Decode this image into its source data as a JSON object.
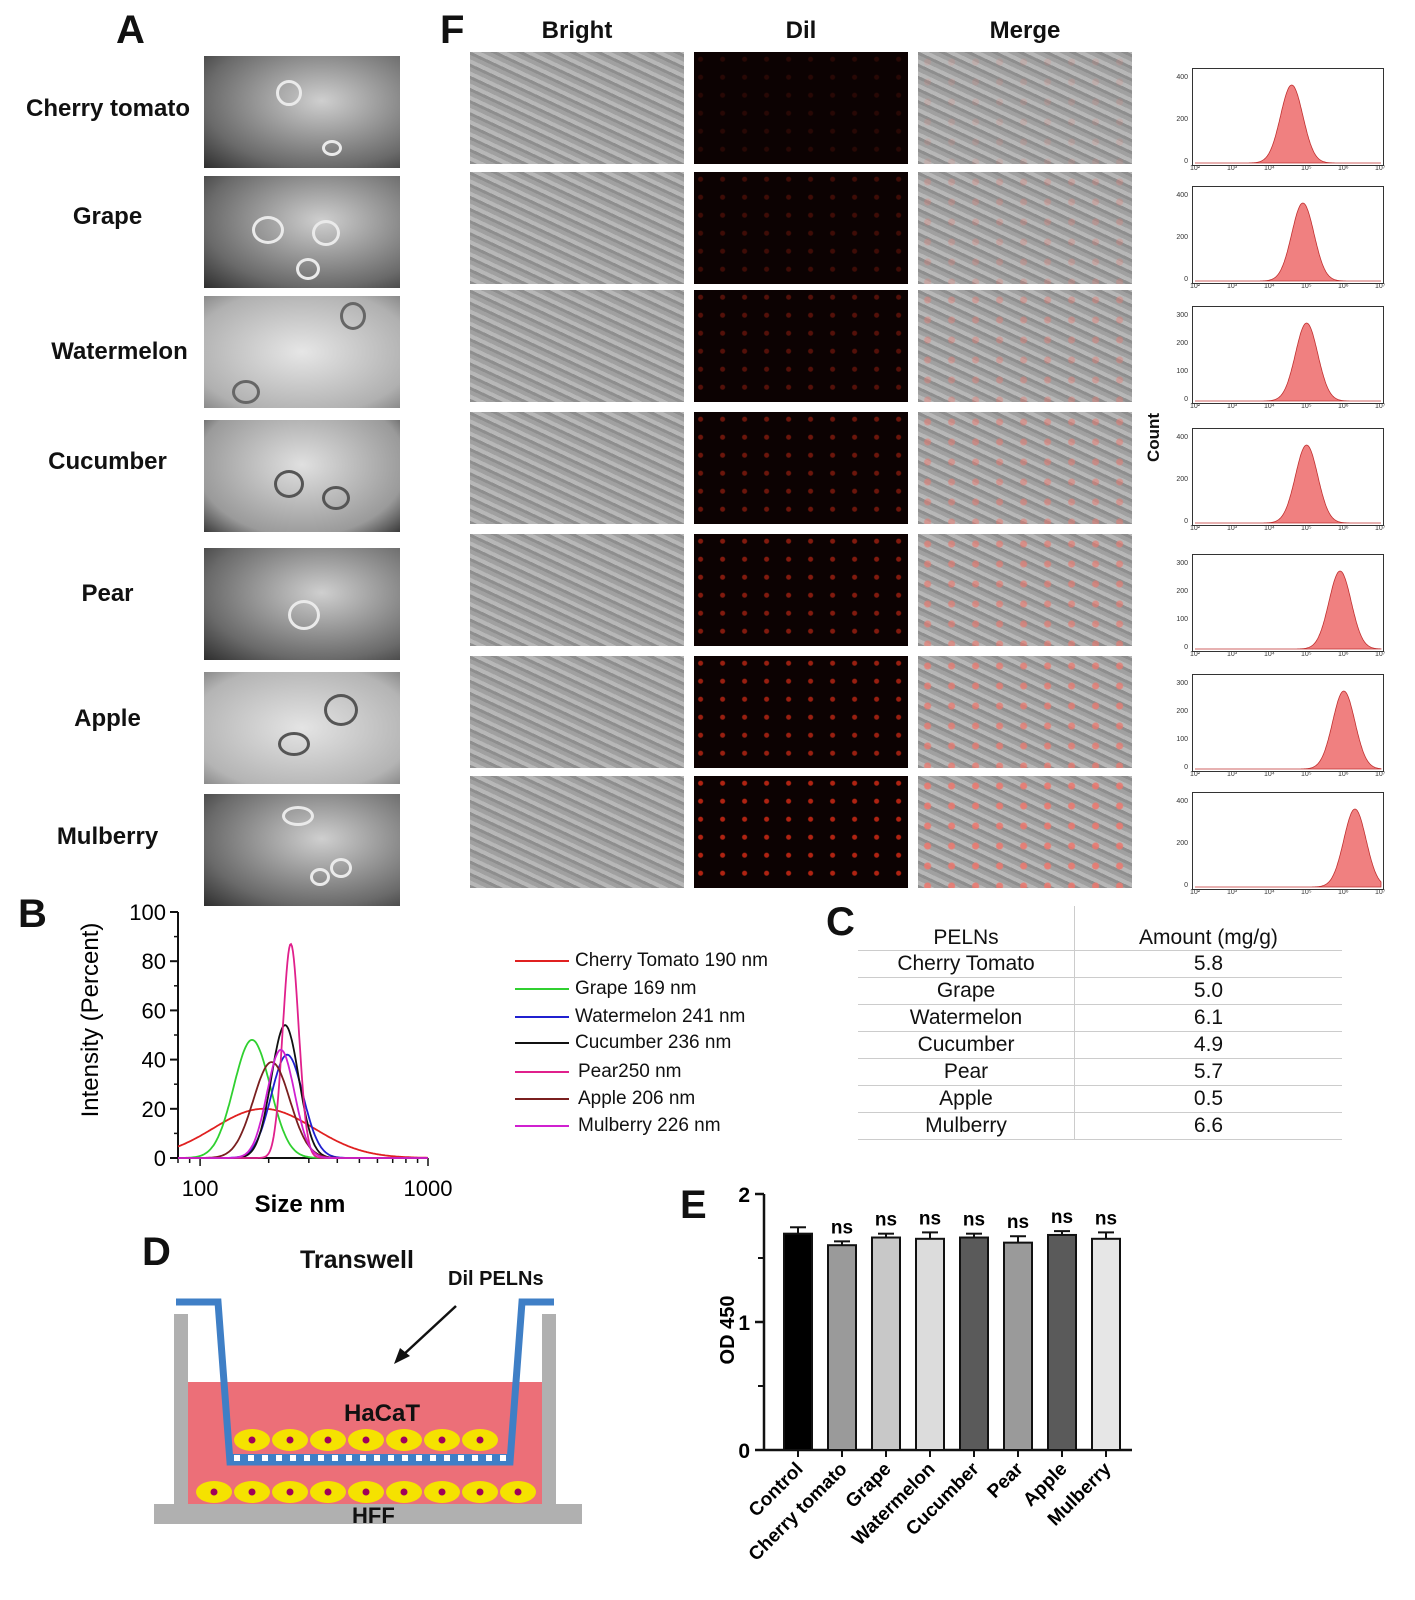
{
  "panels": {
    "a": "A",
    "b": "B",
    "c": "C",
    "d": "D",
    "e": "E",
    "f": "F"
  },
  "samples": [
    "Cherry tomato",
    "Grape",
    "Watermelon",
    "Cucumber",
    "Pear",
    "Apple",
    "Mulberry"
  ],
  "columns": {
    "bright": "Bright",
    "dil": "Dil",
    "merge": "Merge"
  },
  "flow": {
    "ylabel": "Count",
    "x_ticks": [
      "10²",
      "10³",
      "10⁴",
      "10⁵",
      "10⁶",
      "10⁷"
    ],
    "y_ticks": [
      [
        "0",
        "200",
        "400"
      ],
      [
        "0",
        "200",
        "400"
      ],
      [
        "0",
        "100",
        "200",
        "300"
      ],
      [
        "0",
        "200",
        "400"
      ],
      [
        "0",
        "100",
        "200",
        "300"
      ],
      [
        "0",
        "100",
        "200",
        "300"
      ],
      [
        "0",
        "200",
        "400"
      ]
    ],
    "peak_log10": [
      4.6,
      4.9,
      5.0,
      5.0,
      5.9,
      6.0,
      6.3
    ],
    "fill_color": "#f08080"
  },
  "chart_data": [
    {
      "type": "line",
      "ylabel": "Intensity (Percent)",
      "xlabel": "Size nm",
      "x_scale": "log",
      "xlim": [
        80,
        1000
      ],
      "ylim": [
        0,
        100
      ],
      "y_ticks": [
        0,
        20,
        40,
        60,
        80,
        100
      ],
      "x_tick_labels": [
        "100",
        "1000"
      ],
      "legend_position": "right",
      "series": [
        {
          "name": "Cherry Tomato 190 nm",
          "color": "#e02020",
          "center": 190,
          "peak": 20,
          "width": 0.22
        },
        {
          "name": "Grape 169 nm",
          "color": "#30d030",
          "center": 169,
          "peak": 48,
          "width": 0.08
        },
        {
          "name": "Watermelon 241 nm",
          "color": "#2020d0",
          "center": 241,
          "peak": 42,
          "width": 0.07
        },
        {
          "name": "Cucumber 236 nm",
          "color": "#111111",
          "center": 236,
          "peak": 54,
          "width": 0.06
        },
        {
          "name": "Pear250 nm",
          "color": "#e0208c",
          "center": 250,
          "peak": 87,
          "width": 0.035
        },
        {
          "name": "Apple 206 nm",
          "color": "#7a1f1f",
          "center": 206,
          "peak": 39,
          "width": 0.08
        },
        {
          "name": "Mulberry 226 nm",
          "color": "#d020d0",
          "center": 226,
          "peak": 44,
          "width": 0.06
        }
      ]
    },
    {
      "type": "table",
      "headers": [
        "PELNs",
        "Amount (mg/g)"
      ],
      "rows": [
        [
          "Cherry Tomato",
          "5.8"
        ],
        [
          "Grape",
          "5.0"
        ],
        [
          "Watermelon",
          "6.1"
        ],
        [
          "Cucumber",
          "4.9"
        ],
        [
          "Pear",
          "5.7"
        ],
        [
          "Apple",
          "0.5"
        ],
        [
          "Mulberry",
          "6.6"
        ]
      ]
    },
    {
      "type": "bar",
      "ylabel": "OD 450",
      "ylim": [
        0,
        2
      ],
      "y_ticks": [
        0,
        1,
        2
      ],
      "categories": [
        "Control",
        "Cherry tomato",
        "Grape",
        "Watermelon",
        "Cucumber",
        "Pear",
        "Apple",
        "Mulberry"
      ],
      "values": [
        1.69,
        1.6,
        1.66,
        1.65,
        1.66,
        1.62,
        1.68,
        1.65
      ],
      "errors": [
        0.05,
        0.03,
        0.03,
        0.05,
        0.03,
        0.05,
        0.03,
        0.05
      ],
      "colors": [
        "#000000",
        "#9a9a9a",
        "#c8c8c8",
        "#dcdcdc",
        "#5a5a5a",
        "#9a9a9a",
        "#5a5a5a",
        "#e6e6e6"
      ],
      "annotations": [
        "",
        "ns",
        "ns",
        "ns",
        "ns",
        "ns",
        "ns",
        "ns"
      ]
    }
  ],
  "diagram": {
    "title": "Transwell",
    "arrow_label": "Dil PELNs",
    "top_cells": "HaCaT",
    "bottom_cells": "HFF"
  }
}
